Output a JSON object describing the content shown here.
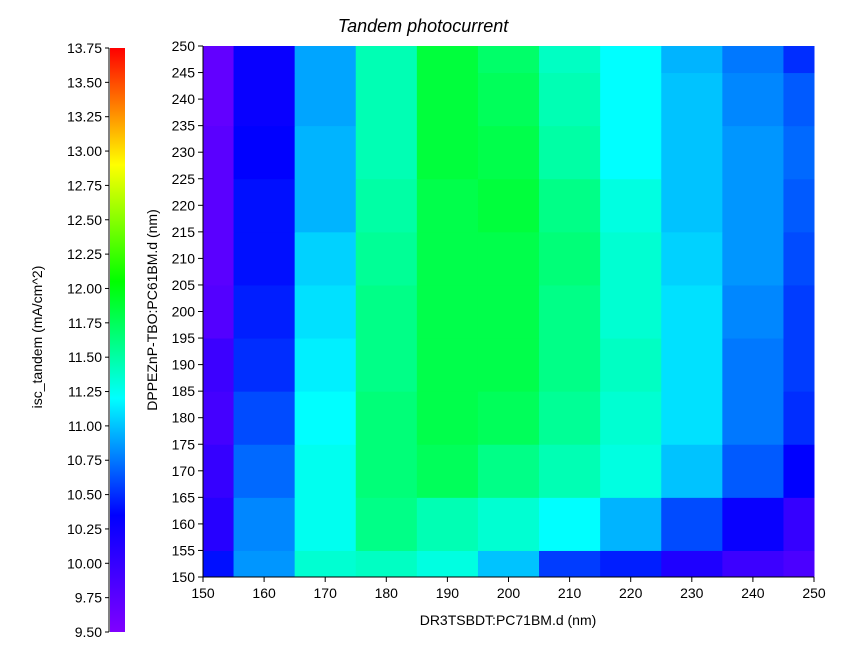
{
  "chart_data": {
    "type": "heatmap",
    "title": "Tandem photocurrent",
    "xlabel": "DR3TSBDT:PC71BM.d (nm)",
    "ylabel": "DPPEZnP-TBO:PC61BM.d (nm)",
    "colorbar_label": "isc_tandem (mA/cm^2)",
    "colormap": "rainbow",
    "colormap_stops": [
      "#8000ff",
      "#0000ff",
      "#00ffff",
      "#00ff00",
      "#ffff00",
      "#ff0000"
    ],
    "color_range": [
      9.5,
      13.75
    ],
    "colorbar_ticks": [
      "9.50",
      "9.75",
      "10.00",
      "10.25",
      "10.50",
      "10.75",
      "11.00",
      "11.25",
      "11.50",
      "11.75",
      "12.00",
      "12.25",
      "12.50",
      "12.75",
      "13.00",
      "13.25",
      "13.50",
      "13.75"
    ],
    "x_ticks": [
      "150",
      "160",
      "170",
      "180",
      "190",
      "200",
      "210",
      "220",
      "230",
      "240",
      "250"
    ],
    "y_ticks": [
      "150",
      "155",
      "160",
      "165",
      "170",
      "175",
      "180",
      "185",
      "190",
      "195",
      "200",
      "205",
      "210",
      "215",
      "220",
      "225",
      "230",
      "235",
      "240",
      "245",
      "250"
    ],
    "xlim": [
      150,
      250
    ],
    "ylim": [
      150,
      250
    ],
    "x": [
      150,
      160,
      170,
      180,
      190,
      200,
      210,
      220,
      230,
      240,
      250
    ],
    "y": [
      150,
      160,
      170,
      180,
      190,
      200,
      210,
      220,
      230,
      240,
      250
    ],
    "z": [
      [
        10.4,
        10.85,
        11.35,
        11.4,
        11.3,
        11.0,
        10.55,
        10.45,
        10.15,
        9.95,
        9.85
      ],
      [
        10.1,
        10.8,
        11.25,
        11.6,
        11.45,
        11.35,
        11.2,
        10.95,
        10.6,
        10.3,
        10.0
      ],
      [
        10.0,
        10.7,
        11.25,
        11.65,
        11.75,
        11.6,
        11.45,
        11.3,
        11.0,
        10.65,
        10.35
      ],
      [
        9.9,
        10.6,
        11.2,
        11.65,
        11.8,
        11.75,
        11.55,
        11.35,
        11.1,
        10.75,
        10.5
      ],
      [
        9.95,
        10.5,
        11.15,
        11.6,
        11.8,
        11.8,
        11.6,
        11.4,
        11.1,
        10.75,
        10.55
      ],
      [
        9.8,
        10.45,
        11.1,
        11.6,
        11.8,
        11.8,
        11.6,
        11.35,
        11.1,
        10.8,
        10.55
      ],
      [
        9.75,
        10.4,
        11.05,
        11.55,
        11.8,
        11.8,
        11.65,
        11.35,
        11.05,
        10.85,
        10.6
      ],
      [
        9.75,
        10.4,
        10.95,
        11.5,
        11.8,
        11.85,
        11.6,
        11.3,
        11.0,
        10.85,
        10.65
      ],
      [
        9.75,
        10.35,
        10.95,
        11.45,
        11.85,
        11.8,
        11.5,
        11.2,
        11.0,
        10.85,
        10.7
      ],
      [
        9.7,
        10.3,
        10.9,
        11.45,
        11.85,
        11.75,
        11.45,
        11.2,
        11.0,
        10.8,
        10.65
      ],
      [
        9.7,
        10.3,
        10.9,
        11.45,
        11.85,
        11.7,
        11.4,
        11.2,
        10.95,
        10.75,
        10.5
      ]
    ]
  }
}
